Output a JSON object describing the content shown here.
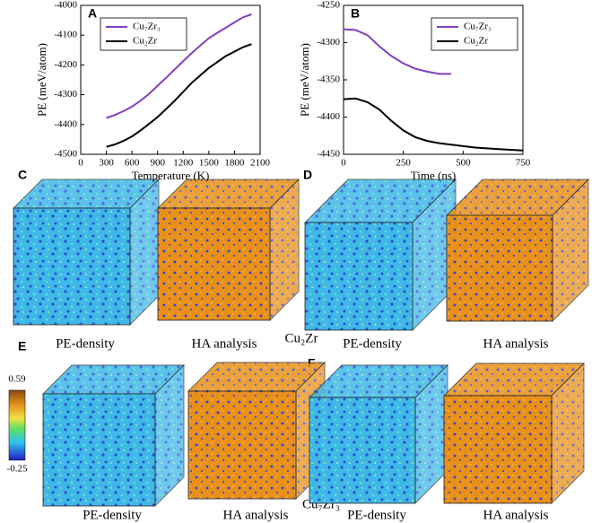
{
  "chart_data": [
    {
      "type": "line",
      "title": "A",
      "x_label": "Temperature (K)",
      "y_label": "PE (meV/atom)",
      "x": [
        300,
        400,
        500,
        600,
        700,
        800,
        900,
        1000,
        1100,
        1200,
        1300,
        1400,
        1500,
        1600,
        1700,
        1800,
        1900,
        2000
      ],
      "series": [
        {
          "name": "Cu₇Zr₃",
          "color": "#8040c0",
          "values": [
            -4378,
            -4368,
            -4355,
            -4340,
            -4320,
            -4297,
            -4270,
            -4243,
            -4215,
            -4187,
            -4160,
            -4135,
            -4110,
            -4092,
            -4075,
            -4057,
            -4040,
            -4030
          ]
        },
        {
          "name": "Cu₂Zr",
          "color": "#000000",
          "values": [
            -4475,
            -4467,
            -4455,
            -4440,
            -4420,
            -4398,
            -4375,
            -4348,
            -4320,
            -4290,
            -4260,
            -4235,
            -4210,
            -4190,
            -4170,
            -4155,
            -4140,
            -4130
          ]
        }
      ],
      "xlim": [
        0,
        2100
      ],
      "xticks": [
        0,
        300,
        600,
        900,
        1200,
        1500,
        1800,
        2100
      ],
      "ylim": [
        -4500,
        -4000
      ],
      "yticks": [
        -4500,
        -4400,
        -4300,
        -4200,
        -4100,
        -4000
      ],
      "legend": "upper left"
    },
    {
      "type": "line",
      "title": "B",
      "x_label": "Time (ns)",
      "y_label": "PE (meV/atom)",
      "x": [
        0,
        50,
        100,
        150,
        200,
        250,
        300,
        350,
        400,
        450,
        500,
        550,
        600,
        650,
        700,
        750
      ],
      "series": [
        {
          "name": "Cu₇Zr₃",
          "color": "#8040c0",
          "values": [
            -4282,
            -4283,
            -4290,
            -4305,
            -4318,
            -4328,
            -4335,
            -4339,
            -4342,
            -4342,
            null,
            null,
            null,
            null,
            null,
            null
          ]
        },
        {
          "name": "Cu₂Zr",
          "color": "#000000",
          "values": [
            -4376,
            -4375,
            -4380,
            -4390,
            -4405,
            -4418,
            -4427,
            -4432,
            -4435,
            -4437,
            -4439,
            -4441,
            -4442,
            -4443,
            -4444,
            -4445
          ]
        }
      ],
      "xlim": [
        0,
        750
      ],
      "xticks": [
        0,
        250,
        500,
        750
      ],
      "ylim": [
        -4450,
        -4250
      ],
      "yticks": [
        -4450,
        -4400,
        -4350,
        -4300,
        -4250
      ],
      "legend": "upper right"
    }
  ],
  "panel_labels": [
    "C",
    "D",
    "E",
    "F"
  ],
  "captions": [
    "PE-density",
    "HA analysis",
    "PE-density",
    "HA analysis",
    "PE-density",
    "HA analysis",
    "PE-density",
    "HA analysis"
  ],
  "composition_labels": [
    "Cu₂Zr",
    "Cu₇Zr₃"
  ],
  "colorbar": {
    "max": 0.59,
    "min": -0.25
  }
}
